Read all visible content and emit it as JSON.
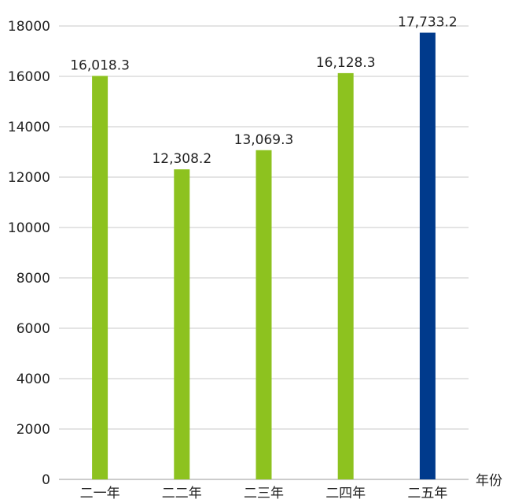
{
  "chart_data": {
    "type": "bar",
    "categories": [
      "二一年",
      "二二年",
      "二三年",
      "二四年",
      "二五年"
    ],
    "values": [
      16018.3,
      12308.2,
      13069.3,
      16128.3,
      17733.2
    ],
    "value_labels": [
      "16,018.3",
      "12,308.2",
      "13,069.3",
      "16,128.3",
      "17,733.2"
    ],
    "xlabel": "年份",
    "ylabel": "",
    "ylim": [
      0,
      18000
    ],
    "yticks": [
      0,
      2000,
      4000,
      6000,
      8000,
      10000,
      12000,
      14000,
      16000,
      18000
    ],
    "grid": true,
    "colors": {
      "default_bar": "#8dc21f",
      "highlight_bar": "#003a8c"
    },
    "highlight_index": 4
  }
}
